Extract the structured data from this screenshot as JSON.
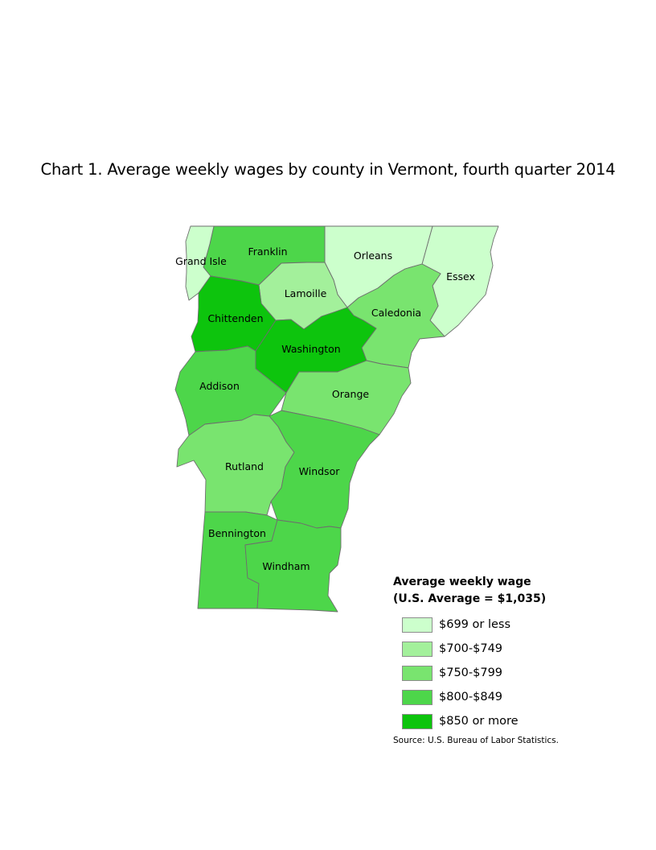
{
  "title": "Chart 1. Average weekly wages by county in Vermont, fourth quarter 2014",
  "legend": {
    "title_line1": "Average weekly wage",
    "title_line2": "(U.S. Average = $1,035)",
    "items": [
      {
        "label": "$699 or less",
        "color": "#ccffcc"
      },
      {
        "label": "$700-$749",
        "color": "#a3f09b"
      },
      {
        "label": "$750-$799",
        "color": "#79e46f"
      },
      {
        "label": "$800-$849",
        "color": "#4dd64a"
      },
      {
        "label": "$850 or more",
        "color": "#0dc40d"
      }
    ]
  },
  "source": "Source: U.S. Bureau of Labor Statistics.",
  "counties": [
    {
      "name": "Grand Isle",
      "wage_class": 0
    },
    {
      "name": "Franklin",
      "wage_class": 3
    },
    {
      "name": "Orleans",
      "wage_class": 0
    },
    {
      "name": "Essex",
      "wage_class": 0
    },
    {
      "name": "Lamoille",
      "wage_class": 1
    },
    {
      "name": "Caledonia",
      "wage_class": 2
    },
    {
      "name": "Chittenden",
      "wage_class": 4
    },
    {
      "name": "Washington",
      "wage_class": 4
    },
    {
      "name": "Addison",
      "wage_class": 3
    },
    {
      "name": "Orange",
      "wage_class": 2
    },
    {
      "name": "Rutland",
      "wage_class": 2
    },
    {
      "name": "Windsor",
      "wage_class": 3
    },
    {
      "name": "Bennington",
      "wage_class": 3
    },
    {
      "name": "Windham",
      "wage_class": 3
    }
  ]
}
